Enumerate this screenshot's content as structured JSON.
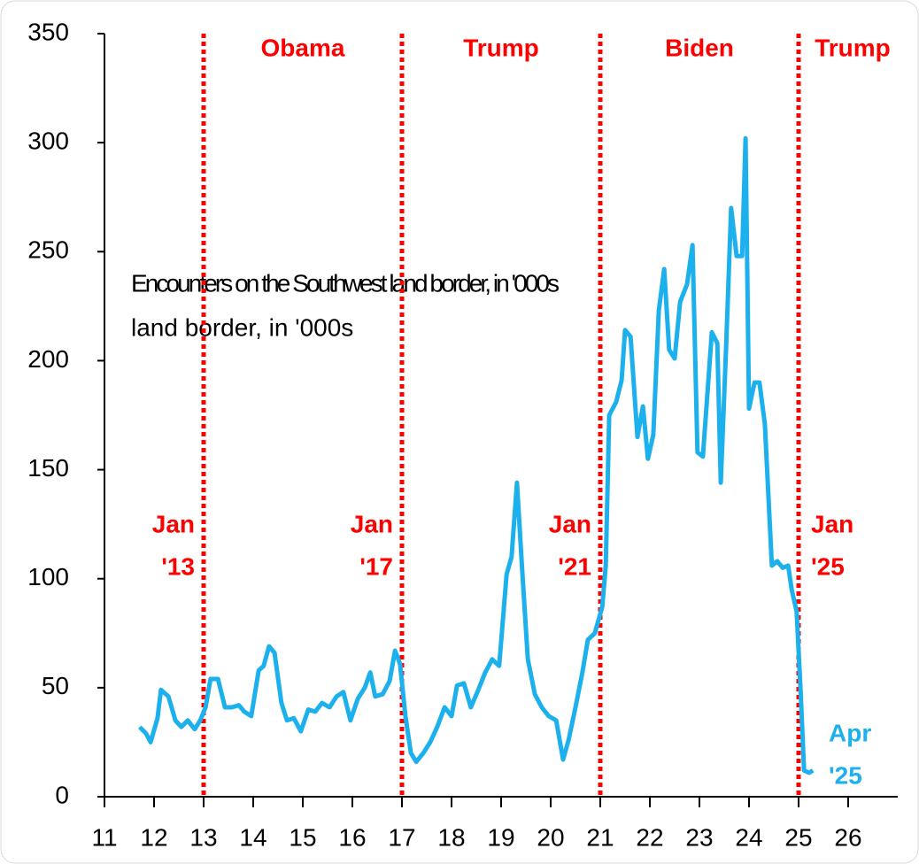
{
  "chart_data": {
    "type": "line",
    "annotation": [
      "Encounters on the Southwest land border, in '000s",
      "land border, in '000s"
    ],
    "end_label": [
      "Apr",
      "'25"
    ],
    "color": "#1cb0ec",
    "marker_color": "#ff0000",
    "markers": [
      {
        "x": 13,
        "label": [
          "Jan",
          "'13"
        ]
      },
      {
        "x": 17,
        "label": [
          "Jan",
          "'17"
        ]
      },
      {
        "x": 21,
        "label": [
          "Jan",
          "'21"
        ]
      },
      {
        "x": 25,
        "label": [
          "Jan",
          "'25"
        ]
      }
    ],
    "eras": [
      "Obama",
      "Trump",
      "Biden",
      "Trump"
    ],
    "xlim": [
      11,
      27
    ],
    "xticks": [
      11,
      12,
      13,
      14,
      15,
      16,
      17,
      18,
      19,
      20,
      21,
      22,
      23,
      24,
      25,
      26
    ],
    "ylim": [
      0,
      350
    ],
    "yticks": [
      0,
      50,
      100,
      150,
      200,
      250,
      300,
      350
    ],
    "x": [
      11.71,
      11.84,
      11.93,
      12.07,
      12.14,
      12.29,
      12.43,
      12.55,
      12.68,
      12.82,
      12.93,
      13.04,
      13.14,
      13.29,
      13.43,
      13.57,
      13.71,
      13.82,
      13.96,
      14.11,
      14.21,
      14.32,
      14.43,
      14.57,
      14.68,
      14.82,
      14.96,
      15.11,
      15.25,
      15.39,
      15.54,
      15.68,
      15.82,
      15.96,
      16.11,
      16.25,
      16.36,
      16.46,
      16.61,
      16.75,
      16.86,
      16.96,
      17.07,
      17.18,
      17.29,
      17.43,
      17.57,
      17.71,
      17.86,
      18.0,
      18.11,
      18.25,
      18.39,
      18.54,
      18.68,
      18.82,
      18.96,
      19.11,
      19.21,
      19.32,
      19.43,
      19.54,
      19.68,
      19.82,
      19.96,
      20.11,
      20.25,
      20.36,
      20.5,
      20.64,
      20.75,
      20.89,
      21.04,
      21.11,
      21.18,
      21.32,
      21.43,
      21.5,
      21.61,
      21.75,
      21.86,
      21.96,
      22.07,
      22.18,
      22.29,
      22.39,
      22.5,
      22.61,
      22.75,
      22.86,
      22.96,
      23.07,
      23.25,
      23.36,
      23.43,
      23.54,
      23.64,
      23.75,
      23.86,
      23.93,
      24.0,
      24.11,
      24.21,
      24.32,
      24.46,
      24.57,
      24.68,
      24.79,
      24.86,
      24.96,
      25.04,
      25.11,
      25.21,
      25.29
    ],
    "values": [
      32,
      29,
      25,
      36,
      49,
      46,
      35,
      32,
      35,
      31,
      35,
      41,
      54,
      54,
      41,
      41,
      42,
      39,
      37,
      58,
      60,
      69,
      66,
      43,
      35,
      36,
      30,
      40,
      39,
      43,
      41,
      46,
      48,
      35,
      45,
      50,
      57,
      46,
      47,
      53,
      67,
      61,
      37,
      20,
      16,
      20,
      25,
      32,
      41,
      37,
      51,
      52,
      41,
      49,
      57,
      63,
      60,
      102,
      110,
      144,
      102,
      63,
      47,
      41,
      37,
      35,
      17,
      26,
      41,
      57,
      72,
      75,
      87,
      106,
      175,
      181,
      191,
      214,
      211,
      165,
      179,
      155,
      166,
      223,
      242,
      205,
      201,
      227,
      235,
      253,
      158,
      156,
      213,
      208,
      144,
      207,
      270,
      248,
      248,
      302,
      178,
      190,
      190,
      171,
      106,
      108,
      105,
      106,
      95,
      85,
      49,
      12,
      11,
      12
    ]
  }
}
